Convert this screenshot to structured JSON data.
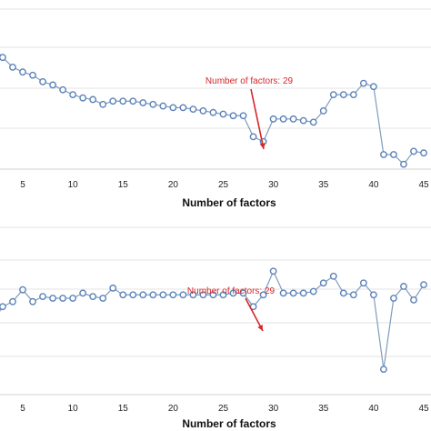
{
  "chart_data": [
    {
      "type": "line",
      "title": "",
      "xlabel": "Number of factors",
      "ylabel": "",
      "xlim": [
        2,
        46
      ],
      "ylim": [
        0,
        10
      ],
      "x_ticks": [
        "5",
        "10",
        "15",
        "20",
        "25",
        "30",
        "35",
        "40",
        "45"
      ],
      "grid": true,
      "series": [
        {
          "x": [
            2,
            3,
            4,
            5,
            6,
            7,
            8,
            9,
            10,
            11,
            12,
            13,
            14,
            15,
            16,
            17,
            18,
            19,
            20,
            21,
            22,
            23,
            24,
            25,
            26,
            27,
            28,
            29,
            30,
            31,
            32,
            33,
            34,
            35,
            36,
            37,
            38,
            39,
            40,
            41,
            42,
            43,
            44,
            45
          ],
          "values": [
            7.6,
            6.9,
            6.3,
            6.0,
            5.8,
            5.4,
            5.2,
            4.9,
            4.6,
            4.4,
            4.3,
            4.0,
            4.2,
            4.2,
            4.2,
            4.1,
            4.0,
            3.9,
            3.8,
            3.8,
            3.7,
            3.6,
            3.5,
            3.4,
            3.3,
            3.3,
            2.0,
            1.7,
            3.1,
            3.1,
            3.1,
            3.0,
            2.9,
            3.6,
            4.6,
            4.6,
            4.6,
            5.3,
            5.1,
            0.9,
            0.9,
            0.3,
            1.1,
            1.0
          ]
        }
      ],
      "annotation": {
        "text": "Number of factors: 29",
        "x": 29
      }
    },
    {
      "type": "line",
      "title": "",
      "xlabel": "Number of factors",
      "ylabel": "",
      "xlim": [
        2,
        46
      ],
      "ylim": [
        0,
        10
      ],
      "x_ticks": [
        "5",
        "10",
        "15",
        "20",
        "25",
        "30",
        "35",
        "40",
        "45"
      ],
      "grid": true,
      "series": [
        {
          "x": [
            2,
            3,
            4,
            5,
            6,
            7,
            8,
            9,
            10,
            11,
            12,
            13,
            14,
            15,
            16,
            17,
            18,
            19,
            20,
            21,
            22,
            23,
            24,
            25,
            26,
            27,
            28,
            29,
            30,
            31,
            32,
            33,
            34,
            35,
            36,
            37,
            38,
            39,
            40,
            41,
            42,
            43,
            44,
            45
          ],
          "values": [
            4.3,
            5.2,
            5.5,
            6.2,
            5.5,
            5.8,
            5.7,
            5.7,
            5.7,
            6.0,
            5.8,
            5.7,
            6.3,
            5.9,
            5.9,
            5.9,
            5.9,
            5.9,
            5.9,
            5.9,
            5.9,
            5.9,
            5.9,
            5.9,
            6.0,
            6.0,
            5.2,
            5.9,
            7.3,
            6.0,
            6.0,
            6.0,
            6.1,
            6.6,
            7.0,
            6.0,
            5.9,
            6.6,
            5.9,
            1.5,
            5.7,
            6.4,
            5.6,
            6.5
          ]
        }
      ],
      "annotation": {
        "text": "Number of factors: 29",
        "x": 29
      }
    }
  ]
}
